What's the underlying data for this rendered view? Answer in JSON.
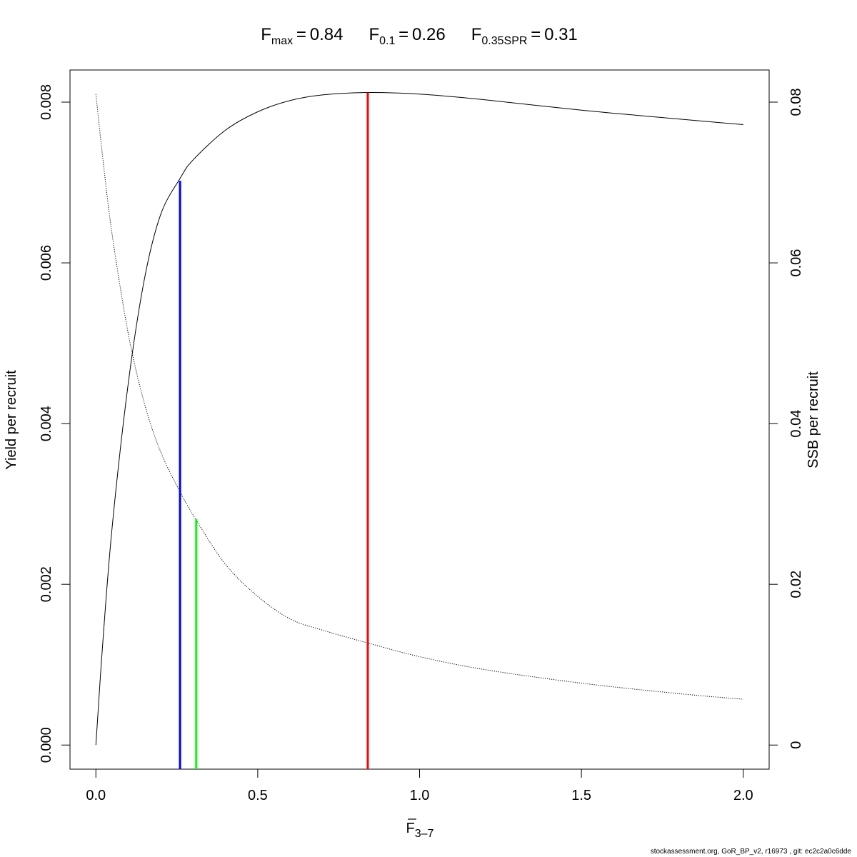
{
  "chart_data": {
    "type": "line",
    "title": {
      "parts": [
        {
          "main": "F",
          "sub": "max",
          "eq": "0.84"
        },
        {
          "main": "F",
          "sub": "0.1",
          "eq": "0.26"
        },
        {
          "main": "F",
          "sub": "0.35SPR",
          "eq": "0.31"
        }
      ]
    },
    "xlabel": {
      "main": "F",
      "sub": "3–7",
      "overline": true
    },
    "ylabel_left": "Yield per recruit",
    "ylabel_right": "SSB per recruit",
    "xlim": [
      -0.08,
      2.08
    ],
    "ylim_left": [
      -0.0003,
      0.0084
    ],
    "ylim_right": [
      -0.003,
      0.084
    ],
    "x_ticks": [
      0,
      0.5,
      1,
      1.5,
      2
    ],
    "x_tick_labels": [
      "0.0",
      "0.5",
      "1.0",
      "1.5",
      "2.0"
    ],
    "y_left_ticks": [
      0,
      0.002,
      0.004,
      0.006,
      0.008
    ],
    "y_left_tick_labels": [
      "0.000",
      "0.002",
      "0.004",
      "0.006",
      "0.008"
    ],
    "y_right_ticks": [
      0,
      0.02,
      0.04,
      0.06,
      0.08
    ],
    "y_right_tick_labels": [
      "0",
      "0.02",
      "0.04",
      "0.06",
      "0.08"
    ],
    "grid": false,
    "series": [
      {
        "axis": "left",
        "style": "solid",
        "color": "#000000",
        "x": [
          0,
          0.02,
          0.05,
          0.1,
          0.15,
          0.2,
          0.26,
          0.3,
          0.4,
          0.5,
          0.6,
          0.7,
          0.84,
          1.0,
          1.2,
          1.5,
          1.8,
          2.0
        ],
        "y": [
          0,
          0.0012,
          0.0027,
          0.0045,
          0.0058,
          0.0066,
          0.00705,
          0.00728,
          0.00765,
          0.00788,
          0.00802,
          0.00809,
          0.00812,
          0.0081,
          0.00803,
          0.0079,
          0.00779,
          0.00772
        ]
      },
      {
        "axis": "right",
        "style": "dotted",
        "color": "#000000",
        "x": [
          0,
          0.02,
          0.05,
          0.1,
          0.15,
          0.2,
          0.26,
          0.31,
          0.4,
          0.5,
          0.6,
          0.7,
          0.84,
          1.0,
          1.2,
          1.5,
          1.8,
          2.0
        ],
        "y": [
          0.081,
          0.0735,
          0.0636,
          0.0512,
          0.0425,
          0.0365,
          0.0315,
          0.028,
          0.0225,
          0.0185,
          0.0157,
          0.0143,
          0.0127,
          0.011,
          0.0094,
          0.0077,
          0.0064,
          0.0057
        ]
      }
    ],
    "reference_lines": [
      {
        "x": 0.26,
        "axis": "left",
        "y_top": 0.00702,
        "color": "#0000ff"
      },
      {
        "x": 0.31,
        "axis": "right",
        "y_top": 0.0281,
        "color": "#00ff00"
      },
      {
        "x": 0.84,
        "axis": "left",
        "y_top": 0.00812,
        "color": "#ff0000"
      }
    ]
  },
  "footer": "stockassessment.org, GoR_BP_v2, r16973 , git: ec2c2a0c6dde"
}
